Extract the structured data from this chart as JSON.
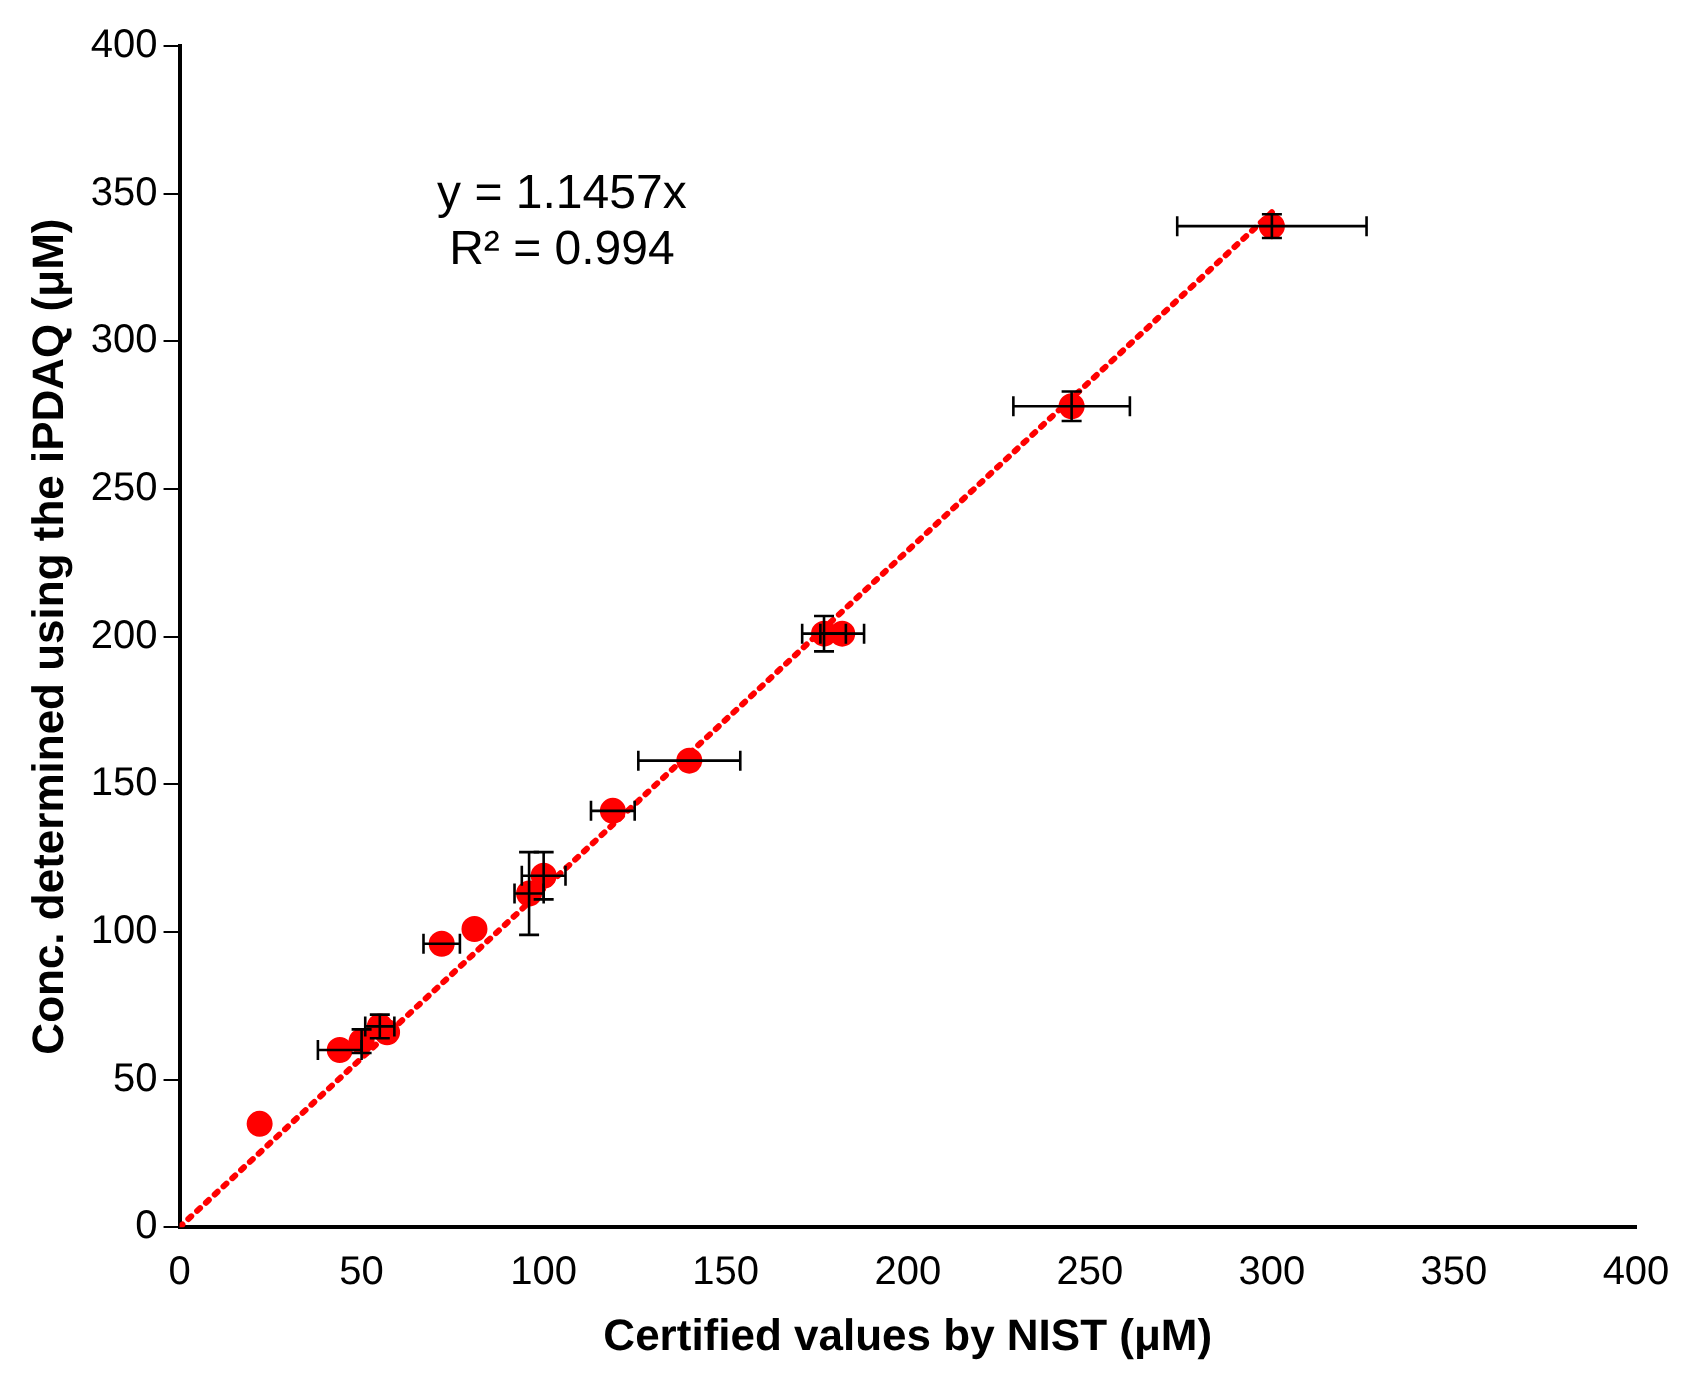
{
  "chart_data": {
    "type": "scatter",
    "xlabel": "Certified values by NIST (μM)",
    "ylabel": "Conc. determined using the iPDAQ (μM)",
    "xlim": [
      0,
      400
    ],
    "ylim": [
      0,
      400
    ],
    "xticks": [
      0,
      50,
      100,
      150,
      200,
      250,
      300,
      350,
      400
    ],
    "yticks": [
      0,
      50,
      100,
      150,
      200,
      250,
      300,
      350,
      400
    ],
    "grid": false,
    "legend": false,
    "marker": "circle",
    "annotations": [
      "y = 1.1457x",
      "R² = 0.994"
    ],
    "series": [
      {
        "type": "scatter",
        "color": "#ff0000",
        "x": [
          22,
          44,
          50,
          55,
          57,
          72,
          81,
          96,
          100,
          119,
          140,
          177,
          182,
          245,
          300
        ],
        "values": [
          35,
          60,
          63,
          68,
          66,
          96,
          101,
          113,
          119,
          141,
          158,
          201,
          201,
          278,
          339
        ],
        "errors": [
          null,
          null,
          4,
          4,
          null,
          null,
          null,
          14,
          8,
          null,
          null,
          6,
          null,
          5,
          4
        ],
        "xerrors": [
          null,
          6,
          null,
          4,
          null,
          5,
          null,
          4,
          6,
          6,
          14,
          6,
          6,
          16,
          26
        ]
      },
      {
        "type": "line",
        "color": "#ff0000",
        "line_style": "dotted",
        "marker": "none",
        "x": [
          0,
          300
        ],
        "values": [
          0,
          343.7
        ]
      }
    ]
  }
}
